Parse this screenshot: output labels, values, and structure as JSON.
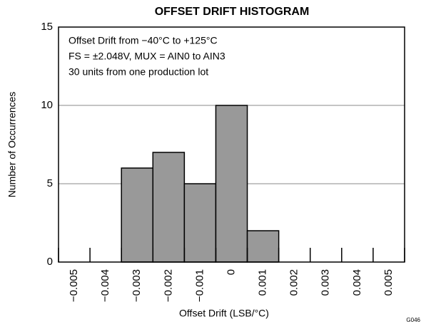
{
  "chart_data": {
    "type": "histogram",
    "title": "OFFSET DRIFT HISTOGRAM",
    "x_label": "Offset Drift (LSB/°C)",
    "y_label": "Number of Occurrences",
    "annotations": [
      "Offset Drift from −40°C to +125°C",
      "FS = ±2.048V, MUX = AIN0 to AIN3",
      "30 units from one production lot"
    ],
    "figure_id": "G046",
    "bins": [
      -0.0055,
      -0.0045,
      -0.0035,
      -0.0025,
      -0.0015,
      -0.0005,
      0.0005,
      0.0015,
      0.0025,
      0.0035,
      0.0045,
      0.0055
    ],
    "values": [
      0,
      0,
      6,
      7,
      5,
      10,
      2,
      0,
      0,
      0,
      0
    ],
    "color": "#999999",
    "xlim": [
      -0.0055,
      0.0055
    ],
    "xticks": [
      {
        "value": -0.005,
        "label": "−0.005"
      },
      {
        "value": -0.004,
        "label": "−0.004"
      },
      {
        "value": -0.003,
        "label": "−0.003"
      },
      {
        "value": -0.002,
        "label": "−0.002"
      },
      {
        "value": -0.001,
        "label": "−0.001"
      },
      0,
      0.001,
      0.002,
      0.003,
      0.004,
      0.005
    ],
    "ylim": [
      0,
      15
    ],
    "yticks": [
      0,
      5,
      10,
      15
    ],
    "grid": true
  }
}
